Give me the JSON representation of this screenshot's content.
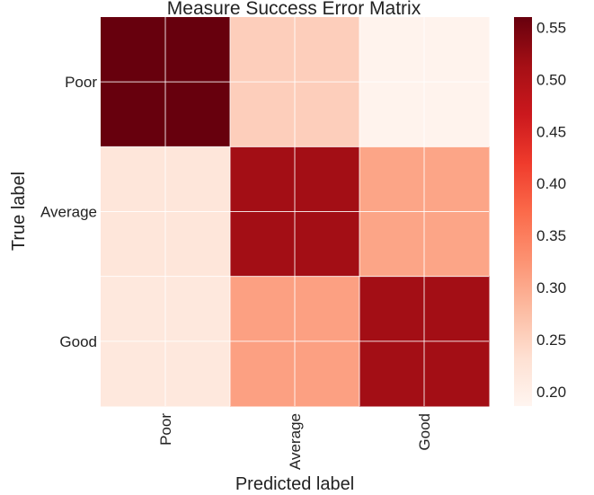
{
  "chart_data": {
    "type": "heatmap",
    "title": "Measure Success Error Matrix",
    "xlabel": "Predicted label",
    "ylabel": "True label",
    "row_labels": [
      "Poor",
      "Average",
      "Good"
    ],
    "col_labels": [
      "Poor",
      "Average",
      "Good"
    ],
    "values": [
      [
        0.56,
        0.255,
        0.19
      ],
      [
        0.22,
        0.515,
        0.305
      ],
      [
        0.215,
        0.31,
        0.515
      ]
    ],
    "colormap": "Reds",
    "colorbar": {
      "range": [
        0.186,
        0.56
      ],
      "ticks": [
        0.2,
        0.25,
        0.3,
        0.35,
        0.4,
        0.45,
        0.5,
        0.55
      ],
      "tick_labels": [
        "0.20",
        "0.25",
        "0.30",
        "0.35",
        "0.40",
        "0.45",
        "0.50",
        "0.55"
      ]
    },
    "grid": true,
    "colors": {
      "grid_line": "#ffffff",
      "text": "#222222"
    }
  }
}
